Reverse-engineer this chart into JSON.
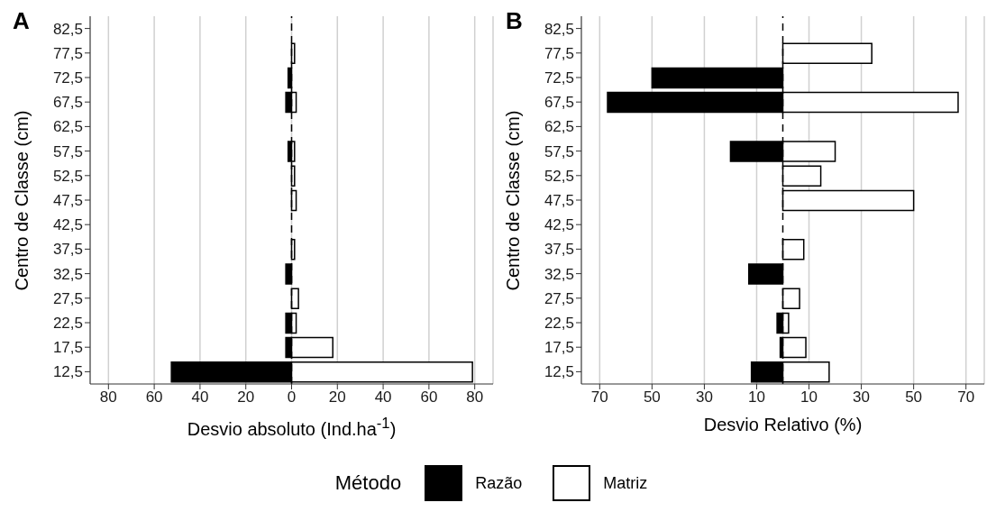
{
  "chart_data": [
    {
      "type": "bar",
      "title": "A",
      "orientation": "horizontal",
      "stacked": true,
      "xlabel": "Desvio absoluto (Ind.ha$^{-1}$)",
      "ylabel": "Centro de Classe (cm)",
      "categories": [
        "82,5",
        "77,5",
        "72,5",
        "67,5",
        "62,5",
        "57,5",
        "52,5",
        "47,5",
        "42,5",
        "37,5",
        "32,5",
        "27,5",
        "22,5",
        "17,5",
        "12,5"
      ],
      "series": [
        {
          "name": "Razão",
          "color": "#000000",
          "values": [
            0,
            0,
            -1.5,
            -2.5,
            0,
            -1.5,
            0,
            0,
            0,
            0,
            -2.5,
            0,
            -2.5,
            -2.5,
            -52.5
          ]
        },
        {
          "name": "Matriz",
          "color": "#ffffff",
          "values": [
            0,
            1.3,
            0,
            2,
            0,
            1.3,
            1.3,
            2,
            0,
            1.3,
            0,
            3,
            2,
            18,
            79
          ]
        }
      ],
      "xlim": [
        -88,
        88
      ],
      "xticks": [
        {
          "value": -80,
          "label": "80"
        },
        {
          "value": -60,
          "label": "60"
        },
        {
          "value": -40,
          "label": "40"
        },
        {
          "value": -20,
          "label": "20"
        },
        0,
        20,
        40,
        60,
        80
      ],
      "grid": "x",
      "legend": "bottom",
      "legend_title": "Método",
      "ref_lines": [
        {
          "axis": "x",
          "value": 0,
          "line_style": "dashed",
          "color": "#000000"
        }
      ]
    },
    {
      "type": "bar",
      "title": "B",
      "orientation": "horizontal",
      "stacked": true,
      "xlabel": "Desvio Relativo (%)",
      "ylabel": "Centro de Classe (cm)",
      "categories": [
        "82,5",
        "77,5",
        "72,5",
        "67,5",
        "62,5",
        "57,5",
        "52,5",
        "47,5",
        "42,5",
        "37,5",
        "32,5",
        "27,5",
        "22,5",
        "17,5",
        "12,5"
      ],
      "series": [
        {
          "color": "#000000",
          "values": [
            0,
            0,
            -50,
            -67,
            0,
            -20,
            0,
            0,
            0,
            0,
            -13,
            0,
            -2.2,
            -1,
            -12
          ]
        },
        {
          "color": "#ffffff",
          "values": [
            0,
            34,
            0,
            67,
            0,
            20,
            14.5,
            50,
            0,
            8,
            0,
            6.4,
            2.2,
            8.8,
            17.7
          ]
        }
      ],
      "xlim": [
        -77,
        77
      ],
      "xticks": [
        {
          "value": -70,
          "label": "70"
        },
        {
          "value": -50,
          "label": "50"
        },
        {
          "value": -30,
          "label": "30"
        },
        {
          "value": -10,
          "label": "10"
        },
        10,
        30,
        50,
        70
      ],
      "grid": "x",
      "ref_lines": [
        {
          "axis": "x",
          "value": 0,
          "line_style": "dashed",
          "color": "#000000"
        }
      ]
    }
  ]
}
